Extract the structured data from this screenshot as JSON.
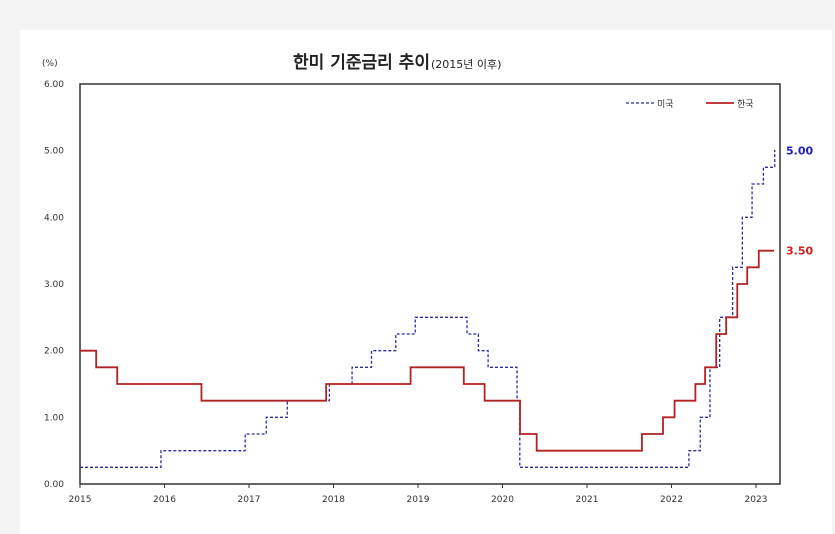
{
  "chart_data": {
    "type": "line",
    "step": true,
    "title": "한미 기준금리 추이",
    "subtitle": "(2015년 이후)",
    "yunit": "(%)",
    "ylim": [
      0,
      6
    ],
    "yticks": [
      "0.00",
      "1.00",
      "2.00",
      "3.00",
      "4.00",
      "5.00",
      "6.00"
    ],
    "xlim": [
      "2015-01-01",
      "2023-04-10"
    ],
    "xticks": [
      "2015",
      "2016",
      "2017",
      "2018",
      "2019",
      "2020",
      "2021",
      "2022",
      "2023"
    ],
    "grid": false,
    "legend_position": "top-right",
    "series": [
      {
        "name": "미국",
        "style": "dashed",
        "color": "#2b2f9e",
        "end_label": "5.00",
        "end_label_color": "#2020c0",
        "points": [
          [
            "2015-01-01",
            0.25
          ],
          [
            "2015-12-17",
            0.5
          ],
          [
            "2016-12-15",
            0.75
          ],
          [
            "2017-03-16",
            1.0
          ],
          [
            "2017-06-15",
            1.25
          ],
          [
            "2017-12-14",
            1.5
          ],
          [
            "2018-03-22",
            1.75
          ],
          [
            "2018-06-14",
            2.0
          ],
          [
            "2018-09-27",
            2.25
          ],
          [
            "2018-12-20",
            2.5
          ],
          [
            "2019-08-01",
            2.25
          ],
          [
            "2019-09-19",
            2.0
          ],
          [
            "2019-10-31",
            1.75
          ],
          [
            "2020-03-04",
            1.25
          ],
          [
            "2020-03-16",
            0.25
          ],
          [
            "2022-03-17",
            0.5
          ],
          [
            "2022-05-05",
            1.0
          ],
          [
            "2022-06-16",
            1.75
          ],
          [
            "2022-07-28",
            2.5
          ],
          [
            "2022-09-22",
            3.25
          ],
          [
            "2022-11-03",
            4.0
          ],
          [
            "2022-12-15",
            4.5
          ],
          [
            "2023-02-02",
            4.75
          ],
          [
            "2023-03-23",
            5.0
          ]
        ]
      },
      {
        "name": "한국",
        "style": "solid",
        "color": "#b22222",
        "end_label": "3.50",
        "end_label_color": "#d02020",
        "points": [
          [
            "2015-01-01",
            2.0
          ],
          [
            "2015-03-12",
            1.75
          ],
          [
            "2015-06-11",
            1.5
          ],
          [
            "2016-06-09",
            1.25
          ],
          [
            "2017-11-30",
            1.5
          ],
          [
            "2018-11-30",
            1.75
          ],
          [
            "2019-07-18",
            1.5
          ],
          [
            "2019-10-16",
            1.25
          ],
          [
            "2020-03-17",
            0.75
          ],
          [
            "2020-05-28",
            0.5
          ],
          [
            "2021-08-26",
            0.75
          ],
          [
            "2021-11-25",
            1.0
          ],
          [
            "2022-01-14",
            1.25
          ],
          [
            "2022-04-14",
            1.5
          ],
          [
            "2022-05-26",
            1.75
          ],
          [
            "2022-07-13",
            2.25
          ],
          [
            "2022-08-25",
            2.5
          ],
          [
            "2022-10-12",
            3.0
          ],
          [
            "2022-11-24",
            3.25
          ],
          [
            "2023-01-13",
            3.5
          ]
        ]
      }
    ]
  }
}
